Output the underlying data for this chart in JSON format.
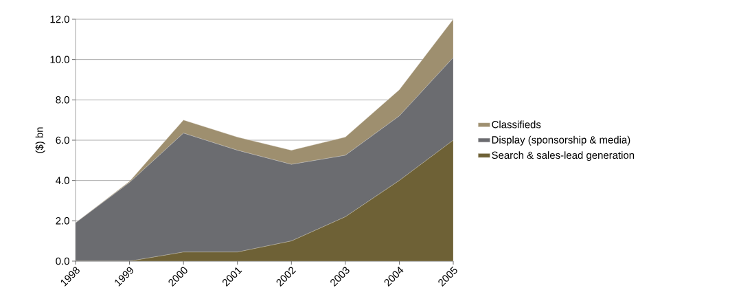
{
  "chart_data": {
    "type": "area",
    "stacked": true,
    "ylabel": "($) bn",
    "categories": [
      "1998",
      "1999",
      "2000",
      "2001",
      "2002",
      "2003",
      "2004",
      "2005"
    ],
    "series": [
      {
        "name": "Search & sales-lead generation",
        "color": "#6e6136",
        "values": [
          0,
          0,
          0.45,
          0.45,
          1.0,
          2.2,
          4.0,
          6.0
        ]
      },
      {
        "name": "Display (sponsorship & media)",
        "color": "#6b6c70",
        "values": [
          1.9,
          3.9,
          5.9,
          5.05,
          3.8,
          3.05,
          3.2,
          4.1
        ]
      },
      {
        "name": "Classifieds",
        "color": "#9e8f6f",
        "values": [
          0,
          0.05,
          0.65,
          0.65,
          0.7,
          0.9,
          1.3,
          1.9
        ]
      }
    ],
    "ylim": [
      0,
      12
    ],
    "yticks": [
      {
        "value": 0,
        "label": "0.0"
      },
      {
        "value": 2,
        "label": "2.0"
      },
      {
        "value": 4,
        "label": "4.0"
      },
      {
        "value": 6,
        "label": "6.0"
      },
      {
        "value": 8,
        "label": "8.0"
      },
      {
        "value": 10,
        "label": "10.0"
      },
      {
        "value": 12,
        "label": "12.0"
      }
    ],
    "grid": "y",
    "legend": "right"
  }
}
